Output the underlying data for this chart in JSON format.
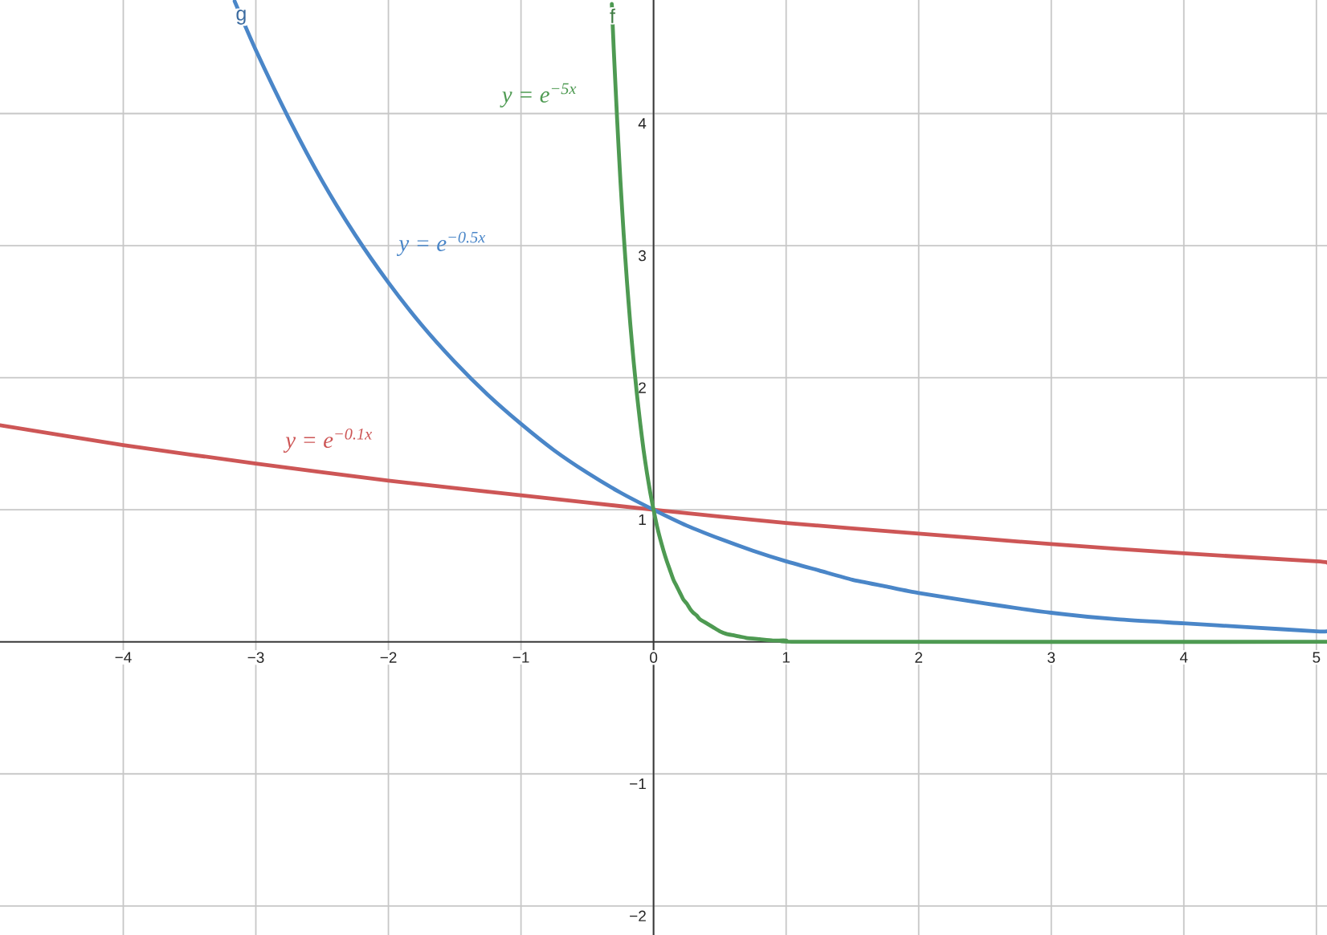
{
  "chart_data": {
    "type": "line",
    "xlim": [
      -4.93,
      5.08
    ],
    "ylim": [
      -2.22,
      4.86
    ],
    "xticks": [
      {
        "value": -4,
        "label": "−4"
      },
      {
        "value": -3,
        "label": "−3"
      },
      {
        "value": -2,
        "label": "−2"
      },
      {
        "value": -1,
        "label": "−1"
      },
      0,
      1,
      2,
      3,
      4,
      5
    ],
    "yticks": [
      {
        "value": -2,
        "label": "−2"
      },
      {
        "value": -1,
        "label": "−1"
      },
      1,
      2,
      3,
      4
    ],
    "grid": true,
    "series": [
      {
        "name": "y = e$^{−0.1x}$",
        "color": "#cd5656",
        "x": [
          -4.93,
          -4,
          -3,
          -2,
          -1,
          0,
          1,
          2,
          3,
          4,
          5,
          5.08
        ],
        "values": [
          1.64,
          1.49,
          1.35,
          1.22,
          1.11,
          1,
          0.9,
          0.82,
          0.74,
          0.67,
          0.61,
          0.6
        ]
      },
      {
        "name": "y = e$^{−0.5x}$",
        "color": "#4a86c8",
        "x": [
          -3.16,
          -3,
          -2.75,
          -2.5,
          -2.25,
          -2,
          -1.75,
          -1.5,
          -1.25,
          -1,
          -0.75,
          -0.5,
          -0.25,
          0,
          0.25,
          0.5,
          0.75,
          1,
          1.25,
          1.5,
          1.75,
          2,
          2.5,
          3,
          3.5,
          4,
          4.5,
          5,
          5.08
        ],
        "values": [
          4.85,
          4.48,
          3.96,
          3.49,
          3.08,
          2.72,
          2.4,
          2.12,
          1.87,
          1.65,
          1.45,
          1.28,
          1.13,
          1,
          0.88,
          0.78,
          0.69,
          0.61,
          0.54,
          0.47,
          0.42,
          0.37,
          0.29,
          0.22,
          0.17,
          0.14,
          0.11,
          0.08,
          0.08
        ]
      },
      {
        "name": "y = e$^{−5x}$",
        "color": "#4e9a52",
        "x": [
          -0.315,
          -0.3,
          -0.275,
          -0.25,
          -0.225,
          -0.2,
          -0.175,
          -0.15,
          -0.125,
          -0.1,
          -0.075,
          -0.05,
          -0.025,
          0,
          0.025,
          0.05,
          0.075,
          0.1,
          0.125,
          0.15,
          0.175,
          0.2,
          0.225,
          0.25,
          0.275,
          0.3,
          0.325,
          0.35,
          0.4,
          0.45,
          0.5,
          0.55,
          0.6,
          0.65,
          0.7,
          0.8,
          0.9,
          1,
          1.2,
          5.08
        ],
        "values": [
          4.83,
          4.48,
          3.96,
          3.49,
          3.08,
          2.72,
          2.4,
          2.12,
          1.87,
          1.65,
          1.45,
          1.28,
          1.13,
          1,
          0.88,
          0.78,
          0.69,
          0.61,
          0.54,
          0.47,
          0.42,
          0.37,
          0.32,
          0.29,
          0.25,
          0.22,
          0.2,
          0.17,
          0.14,
          0.11,
          0.08,
          0.06,
          0.05,
          0.04,
          0.03,
          0.02,
          0.01,
          0.01,
          0,
          0
        ]
      }
    ],
    "annotations": [
      {
        "text": "g",
        "x": -3.11,
        "y": 4.73
      },
      {
        "text": "f",
        "x": -0.31,
        "y": 4.74
      }
    ]
  }
}
